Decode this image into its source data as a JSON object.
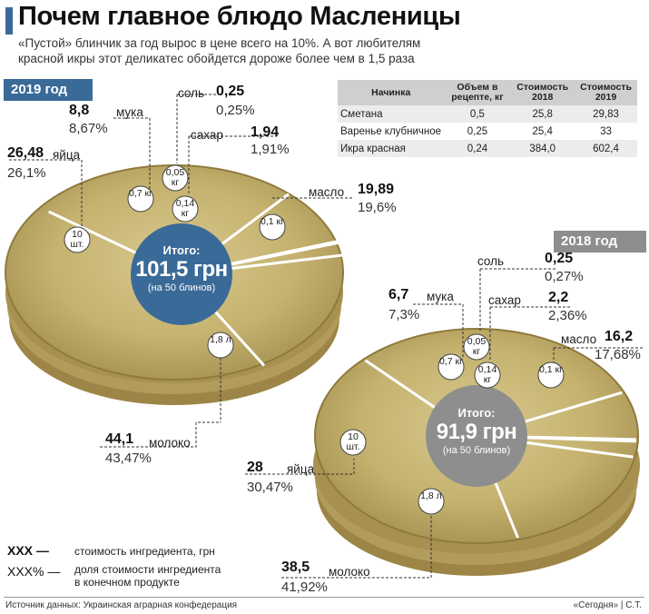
{
  "title": "Почем главное блюдо Масленицы",
  "subtitle_line1": "«Пустой» блинчик за год вырос в цене всего на 10%. А вот любителям",
  "subtitle_line2": "красной икры этот деликатес обойдется дороже более чем в 1,5 раза",
  "colors": {
    "accent_2019": "#3a6a98",
    "accent_2018": "#8e8e8e",
    "pancake": "#c9b77a",
    "pancake_dark": "#a89553"
  },
  "chart_data": [
    {
      "type": "pie",
      "year_label": "2019 год",
      "total_label": "Итого:",
      "total_value": "101,5 грн",
      "total_note": "(на 50 блинов)",
      "slices": [
        {
          "name": "молоко",
          "value": 44.1,
          "value_label": "44,1",
          "pct_label": "43,47%",
          "qty": "1,8 л"
        },
        {
          "name": "яйца",
          "value": 26.48,
          "value_label": "26,48",
          "pct_label": "26,1%",
          "qty": "10 шт."
        },
        {
          "name": "мука",
          "value": 8.8,
          "value_label": "8,8",
          "pct_label": "8,67%",
          "qty": "0,7 кг"
        },
        {
          "name": "соль",
          "value": 0.25,
          "value_label": "0,25",
          "pct_label": "0,25%",
          "qty": "0,05 кг"
        },
        {
          "name": "сахар",
          "value": 1.94,
          "value_label": "1,94",
          "pct_label": "1,91%",
          "qty": "0,14 кг"
        },
        {
          "name": "масло",
          "value": 19.89,
          "value_label": "19,89",
          "pct_label": "19,6%",
          "qty": "0,1 кг"
        }
      ]
    },
    {
      "type": "pie",
      "year_label": "2018 год",
      "total_label": "Итого:",
      "total_value": "91,9 грн",
      "total_note": "(на 50 блинов)",
      "slices": [
        {
          "name": "молоко",
          "value": 38.5,
          "value_label": "38,5",
          "pct_label": "41,92%",
          "qty": "1,8 л"
        },
        {
          "name": "яйца",
          "value": 28,
          "value_label": "28",
          "pct_label": "30,47%",
          "qty": "10 шт."
        },
        {
          "name": "мука",
          "value": 6.7,
          "value_label": "6,7",
          "pct_label": "7,3%",
          "qty": "0,7 кг"
        },
        {
          "name": "соль",
          "value": 0.25,
          "value_label": "0,25",
          "pct_label": "0,27%",
          "qty": "0,05 кг"
        },
        {
          "name": "сахар",
          "value": 2.2,
          "value_label": "2,2",
          "pct_label": "2,36%",
          "qty": "0,14 кг"
        },
        {
          "name": "масло",
          "value": 16.2,
          "value_label": "16,2",
          "pct_label": "17,68%",
          "qty": "0,1 кг"
        }
      ]
    }
  ],
  "table": {
    "headers": [
      "Начинка",
      "Объем в рецепте, кг",
      "Стоимость 2018",
      "Стоимость 2019"
    ],
    "rows": [
      [
        "Сметана",
        "0,5",
        "25,8",
        "29,83"
      ],
      [
        "Варенье клубничное",
        "0,25",
        "25,4",
        "33"
      ],
      [
        "Икра красная",
        "0,24",
        "384,0",
        "602,4"
      ]
    ]
  },
  "legend": {
    "key1": "XXX —",
    "text1": "стоимость ингредиента, грн",
    "key2": "XXX% —",
    "text2_line1": "доля стоимости ингредиента",
    "text2_line2": "в конечном продукте"
  },
  "footer": {
    "source": "Источник данных: Украинская аграрная конфедерация",
    "credit": "«Сегодня» | С.Т."
  }
}
